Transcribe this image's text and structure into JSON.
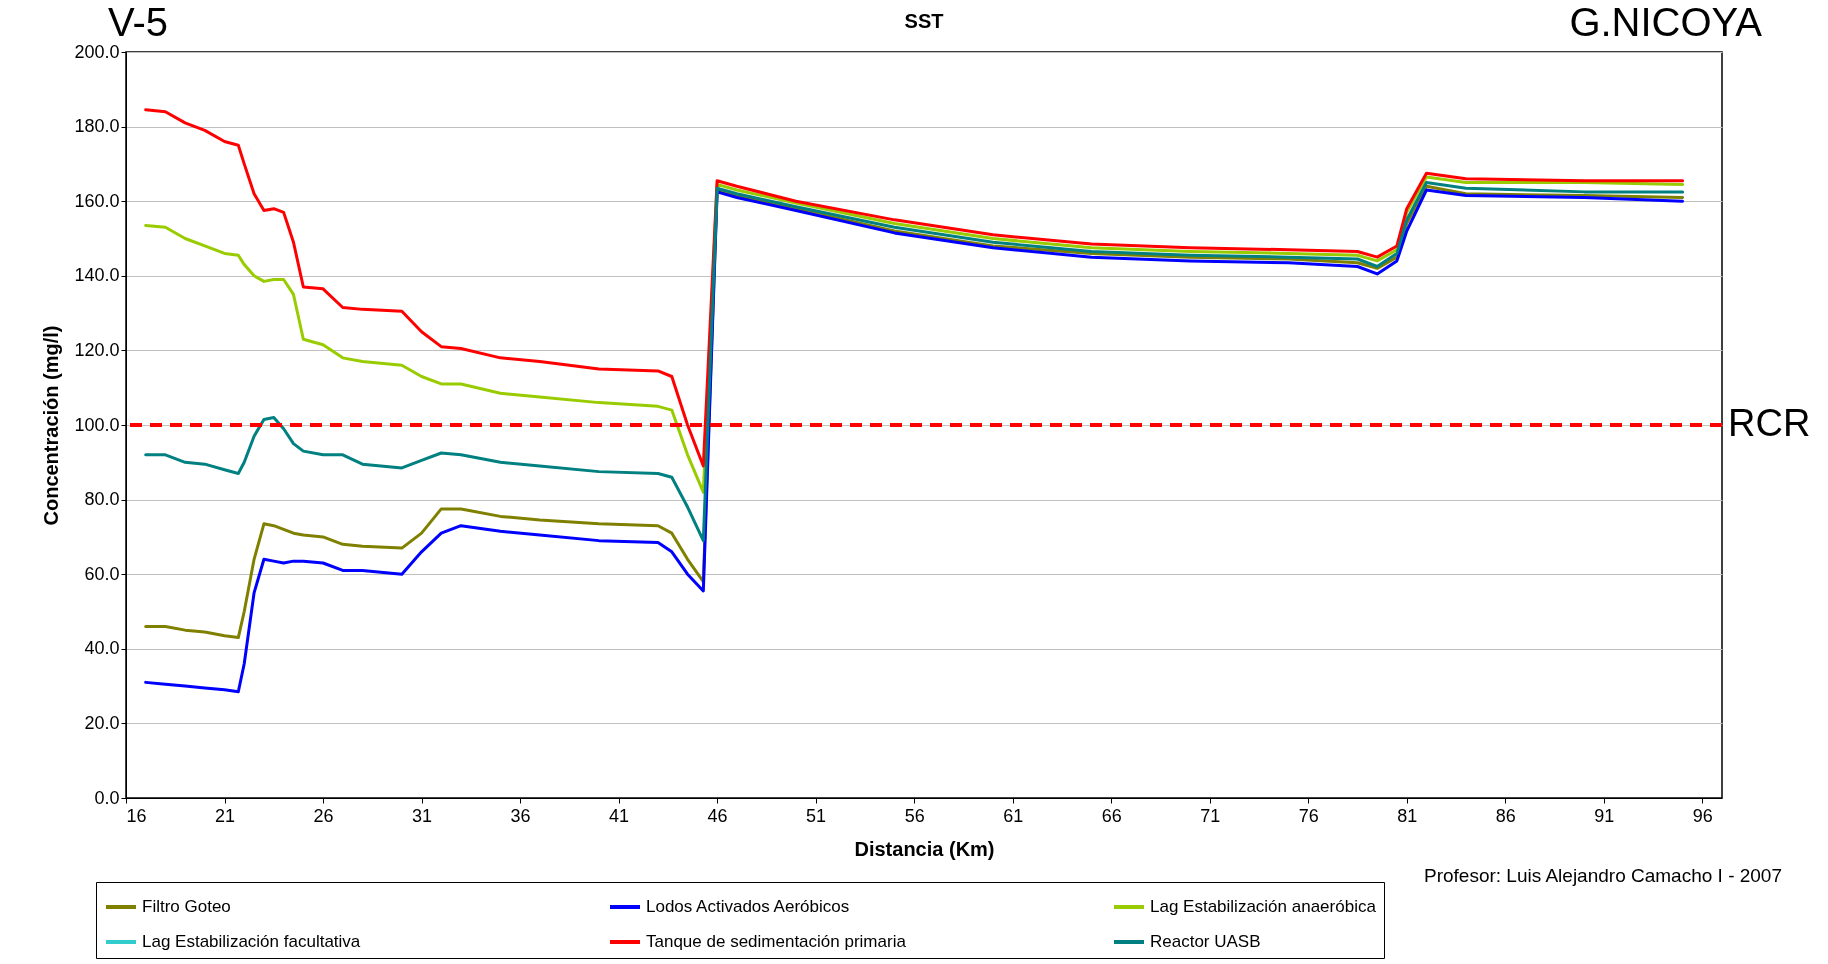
{
  "chart_data": {
    "type": "line",
    "title": "SST",
    "xlabel": "Distancia (Km)",
    "ylabel": "Concentración (mg/l)",
    "x": [
      17,
      18,
      19,
      20,
      21,
      21.7,
      22,
      22.5,
      23,
      23.5,
      24,
      24.5,
      25,
      26,
      27,
      28,
      30,
      31,
      32,
      33,
      35,
      37,
      40,
      43,
      43.7,
      44.5,
      45.3,
      46,
      47,
      50,
      55,
      60,
      65,
      70,
      75,
      78.5,
      79.5,
      80.5,
      81,
      82,
      84,
      90,
      95
    ],
    "series": [
      {
        "name": "Filtro Goteo",
        "color": "#808000",
        "values": [
          46,
          46,
          45,
          44.5,
          43.5,
          43,
          50,
          64,
          73.5,
          73,
          72,
          71,
          70.5,
          70,
          68,
          67.5,
          67,
          71,
          77.5,
          77.5,
          75.5,
          74.5,
          73.5,
          73,
          71,
          64,
          58,
          163,
          161.5,
          158,
          152,
          148,
          146,
          145,
          144.5,
          143.5,
          142,
          145,
          154,
          164,
          162,
          161.5,
          161
        ]
      },
      {
        "name": "Lodos Activados Aeróbicos",
        "color": "#0000ff",
        "values": [
          31,
          30.5,
          30,
          29.5,
          29,
          28.5,
          36,
          55,
          64,
          63.5,
          63,
          63.5,
          63.5,
          63,
          61,
          61,
          60,
          66,
          71,
          73,
          71.5,
          70.5,
          69,
          68.5,
          66,
          60,
          55.5,
          162.5,
          161,
          157.5,
          151.5,
          147.5,
          145,
          144,
          143.5,
          142.5,
          140.5,
          144,
          152,
          163,
          161.5,
          161,
          160
        ]
      },
      {
        "name": "Lag Estabilización anaeróbica",
        "color": "#99cc00",
        "values": [
          153.5,
          153,
          150,
          148,
          146,
          145.5,
          143,
          140,
          138.5,
          139,
          139,
          135,
          123,
          121.5,
          118,
          117,
          116,
          113,
          111,
          111,
          108.5,
          107.5,
          106,
          105,
          104,
          92,
          82,
          164.5,
          163,
          159.5,
          154,
          150,
          147.5,
          146.5,
          146,
          145.5,
          144,
          147,
          157,
          166.5,
          165,
          165,
          164.5
        ]
      },
      {
        "name": "Lag Estabilización  facultativa",
        "color": "#33cccc",
        "values": [
          null,
          null,
          null,
          null,
          null,
          null,
          null,
          null,
          null,
          null,
          null,
          null,
          null,
          null,
          null,
          null,
          null,
          null,
          null,
          null,
          null,
          null,
          null,
          null,
          null,
          null,
          null,
          null,
          null,
          null,
          null,
          null,
          null,
          null,
          null,
          null,
          null,
          null,
          null,
          null,
          null,
          null,
          null
        ]
      },
      {
        "name": "Tanque de sedimentación primaria",
        "color": "#ff0000",
        "values": [
          184.5,
          184,
          181,
          179,
          176,
          175,
          170,
          162,
          157.5,
          158,
          157,
          149,
          137,
          136.5,
          131.5,
          131,
          130.5,
          125,
          121,
          120.5,
          118,
          117,
          115,
          114.5,
          113,
          100,
          89,
          165.5,
          164,
          160,
          155,
          151,
          148.5,
          147.5,
          147,
          146.5,
          145,
          148,
          158,
          167.5,
          166,
          165.5,
          165.5
        ]
      },
      {
        "name": "Reactor UASB",
        "color": "#008080",
        "values": [
          92,
          92,
          90,
          89.5,
          88,
          87,
          90,
          97,
          101.5,
          102,
          99,
          95,
          93,
          92,
          92,
          89.5,
          88.5,
          90.5,
          92.5,
          92,
          90,
          89,
          87.5,
          87,
          86,
          78,
          69,
          163.5,
          162,
          158.5,
          153,
          149,
          146.5,
          145.5,
          145,
          144.5,
          142.5,
          146,
          155,
          165,
          163.5,
          162.5,
          162.5
        ]
      }
    ],
    "xlim": [
      16,
      97
    ],
    "xticks": [
      16,
      21,
      26,
      31,
      36,
      41,
      46,
      51,
      56,
      61,
      66,
      71,
      76,
      81,
      86,
      91,
      96
    ],
    "ylim": [
      0,
      200
    ],
    "yticks": [
      {
        "value": 0,
        "label": "0.0"
      },
      {
        "value": 20,
        "label": "20.0"
      },
      {
        "value": 40,
        "label": "40.0"
      },
      {
        "value": 60,
        "label": "60.0"
      },
      {
        "value": 80,
        "label": "80.0"
      },
      {
        "value": 100,
        "label": "100.0"
      },
      {
        "value": 120,
        "label": "120.0"
      },
      {
        "value": 140,
        "label": "140.0"
      },
      {
        "value": 160,
        "label": "160.0"
      },
      {
        "value": 180,
        "label": "180.0"
      },
      {
        "value": 200,
        "label": "200.0"
      }
    ],
    "ref_lines": [
      {
        "axis": "y",
        "value": 100,
        "label": "RCR",
        "color": "#ff0000",
        "line_style": "dashed"
      }
    ],
    "annotations": [
      "V-5",
      "G.NICOYA",
      "Profesor: Luis Alejandro Camacho I - 2007"
    ],
    "grid": "y",
    "legend": "bottom",
    "line_style": "solid"
  }
}
